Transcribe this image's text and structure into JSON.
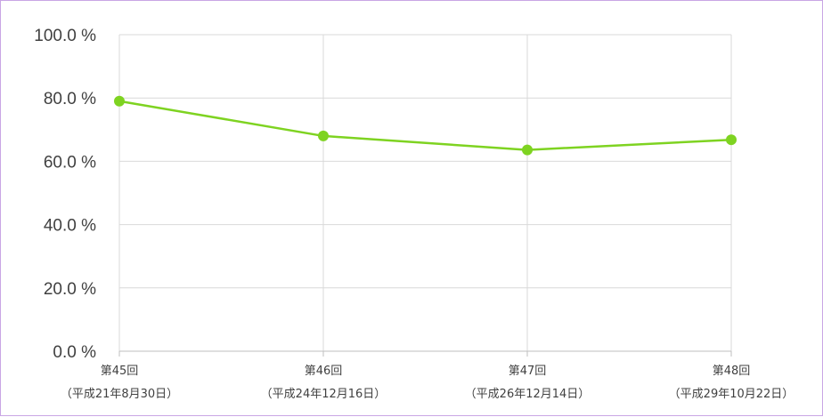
{
  "chart_data": {
    "type": "line",
    "categories": [
      [
        "第45回",
        "（平成21年8月30日）"
      ],
      [
        "第46回",
        "（平成24年12月16日）"
      ],
      [
        "第47回",
        "（平成26年12月14日）"
      ],
      [
        "第48回",
        "（平成29年10月22日）"
      ]
    ],
    "series": [
      {
        "values": [
          79.0,
          68.0,
          63.6,
          66.8
        ],
        "color": "#7ed321"
      }
    ],
    "ylim": [
      0,
      100
    ],
    "yticks": [
      "0.0 %",
      "20.0 %",
      "40.0 %",
      "60.0 %",
      "80.0 %",
      "100.0 %"
    ],
    "title": "",
    "xlabel": "",
    "ylabel": "",
    "grid": true,
    "legend": "none"
  }
}
